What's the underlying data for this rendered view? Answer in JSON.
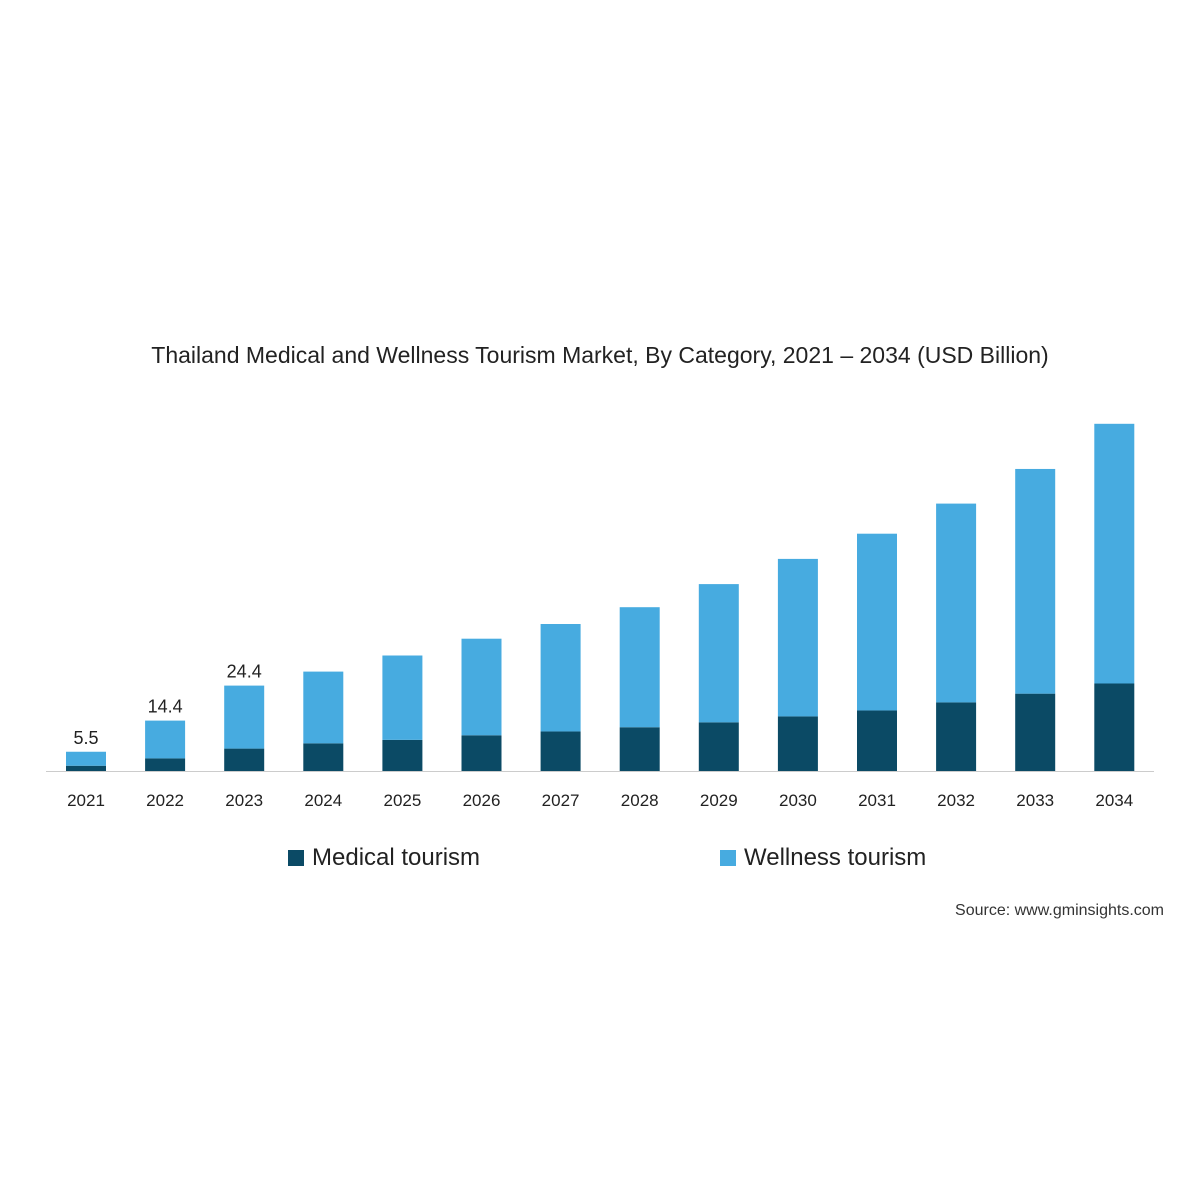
{
  "colors": {
    "medical": "#0b4a65",
    "wellness": "#47abe0",
    "axis": "#cccccc",
    "text": "#222222"
  },
  "chart_data": {
    "type": "bar",
    "stacked": true,
    "title": "Thailand Medical and Wellness Tourism Market, By Category, 2021 – 2034 (USD Billion)",
    "xlabel": "",
    "ylabel": "",
    "ylim": [
      0,
      100
    ],
    "categories": [
      "2021",
      "2022",
      "2023",
      "2024",
      "2025",
      "2026",
      "2027",
      "2028",
      "2029",
      "2030",
      "2031",
      "2032",
      "2033",
      "2034"
    ],
    "series": [
      {
        "name": "Medical tourism",
        "values": [
          1.5,
          3.6,
          6.4,
          7.9,
          8.9,
          10.2,
          11.3,
          12.5,
          13.9,
          15.6,
          17.3,
          19.6,
          22.1,
          25.0
        ]
      },
      {
        "name": "Wellness tourism",
        "values": [
          4.0,
          10.8,
          18.0,
          20.5,
          24.1,
          27.6,
          30.7,
          34.3,
          39.5,
          45.0,
          50.5,
          56.8,
          64.2,
          74.2
        ]
      }
    ],
    "total_labels": [
      "5.5",
      "14.4",
      "24.4",
      "",
      "",
      "",
      "",
      "",
      "",
      "",
      "",
      "",
      "",
      ""
    ],
    "legend_position": "bottom"
  },
  "legend": {
    "medical_label": "Medical tourism",
    "wellness_label": "Wellness tourism"
  },
  "source": "Source: www.gminsights.com"
}
